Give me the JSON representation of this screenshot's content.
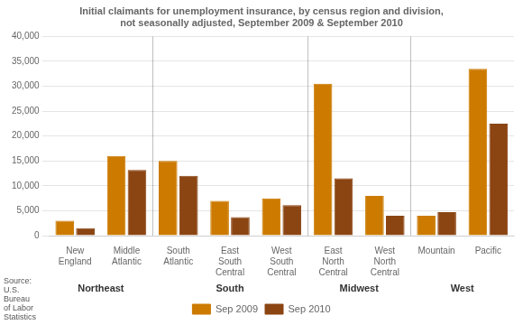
{
  "chart_data": {
    "type": "bar",
    "title": "Initial claimants for unemployment insurance, by census region and division,\nnot seasonally adjusted, September 2009 & September 2010",
    "categories": [
      "New\nEngland",
      "Middle\nAtlantic",
      "South\nAtlantic",
      "East\nSouth\nCentral",
      "West\nSouth\nCentral",
      "East\nNorth\nCentral",
      "West\nNorth\nCentral",
      "Mountain",
      "Pacific"
    ],
    "series": [
      {
        "name": "Sep 2009",
        "color": "#CC7A00",
        "values": [
          3000,
          16000,
          15000,
          7000,
          7500,
          30500,
          8000,
          4000,
          33500
        ]
      },
      {
        "name": "Sep 2010",
        "color": "#8B4513",
        "values": [
          1500,
          13200,
          12000,
          3700,
          6100,
          11500,
          4000,
          4700,
          22500
        ]
      }
    ],
    "ylim": [
      0,
      40000
    ],
    "yticks": [
      0,
      {
        "value": 5000,
        "label": "5,000"
      },
      {
        "value": 10000,
        "label": "10,000"
      },
      {
        "value": 15000,
        "label": "15,000"
      },
      {
        "value": 20000,
        "label": "20,000"
      },
      {
        "value": 25000,
        "label": "25,000"
      },
      {
        "value": 30000,
        "label": "30,000"
      },
      {
        "value": 35000,
        "label": "35,000"
      },
      {
        "value": 40000,
        "label": "40,000"
      }
    ],
    "annotations": [
      {
        "text": "Northeast",
        "start": 0,
        "end": 1
      },
      {
        "text": "South",
        "start": 2,
        "end": 4
      },
      {
        "text": "Midwest",
        "start": 5,
        "end": 6
      },
      {
        "text": "West",
        "start": 7,
        "end": 8
      }
    ],
    "source": "Source:\nU.S.\nBureau\nof Labor\nStatistics",
    "grid": true,
    "legend": "bottom"
  }
}
